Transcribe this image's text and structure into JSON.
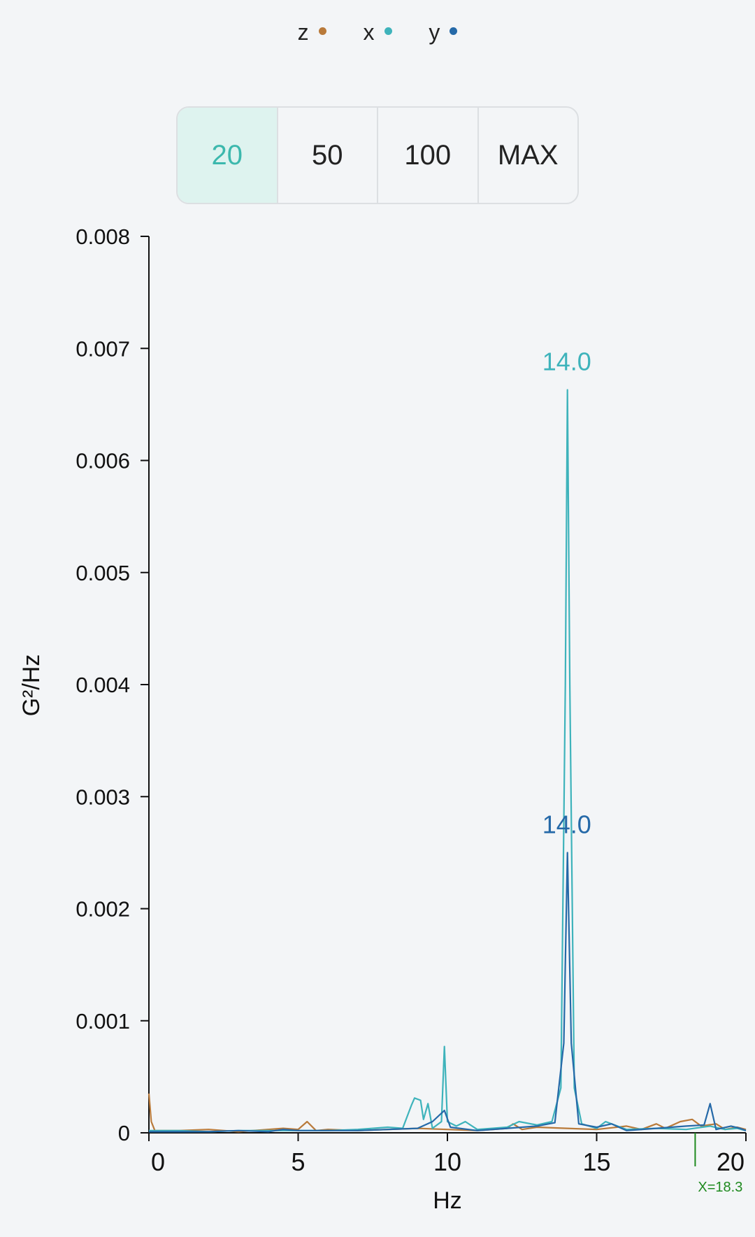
{
  "legend": [
    {
      "name": "z",
      "color": "#b97a3a"
    },
    {
      "name": "x",
      "color": "#3eb3bb"
    },
    {
      "name": "y",
      "color": "#2569a8"
    }
  ],
  "range_selector": {
    "options": [
      "20",
      "50",
      "100",
      "MAX"
    ],
    "active": "20"
  },
  "chart_data": {
    "type": "line",
    "xlabel": "Hz",
    "ylabel": "G²/Hz",
    "xlim": [
      0,
      20
    ],
    "ylim": [
      0,
      0.008
    ],
    "x_ticks": [
      "0",
      "5",
      "10",
      "15",
      "20"
    ],
    "y_ticks": [
      "0",
      "0.001",
      "0.002",
      "0.003",
      "0.004",
      "0.005",
      "0.006",
      "0.007",
      "0.008"
    ],
    "series": [
      {
        "name": "z",
        "color": "#b97a3a",
        "points": [
          [
            0,
            0.00035
          ],
          [
            0.08,
            0.0001
          ],
          [
            0.2,
            2e-05
          ],
          [
            1,
            2e-05
          ],
          [
            2,
            3e-05
          ],
          [
            3,
            1e-05
          ],
          [
            4,
            3e-05
          ],
          [
            4.5,
            4e-05
          ],
          [
            5,
            3e-05
          ],
          [
            5.3,
            0.0001
          ],
          [
            5.6,
            2e-05
          ],
          [
            6,
            3e-05
          ],
          [
            7,
            2e-05
          ],
          [
            8,
            3e-05
          ],
          [
            9,
            4e-05
          ],
          [
            10,
            3e-05
          ],
          [
            11,
            2e-05
          ],
          [
            12,
            4e-05
          ],
          [
            12.2,
            8e-05
          ],
          [
            12.5,
            3e-05
          ],
          [
            13,
            5e-05
          ],
          [
            14,
            4e-05
          ],
          [
            15,
            3e-05
          ],
          [
            16,
            6e-05
          ],
          [
            16.5,
            3e-05
          ],
          [
            17,
            8e-05
          ],
          [
            17.3,
            4e-05
          ],
          [
            17.8,
            0.0001
          ],
          [
            18.2,
            0.00012
          ],
          [
            18.5,
            6e-05
          ],
          [
            19,
            8e-05
          ],
          [
            19.3,
            3e-05
          ],
          [
            19.7,
            5e-05
          ],
          [
            20,
            3e-05
          ]
        ]
      },
      {
        "name": "x",
        "color": "#3eb3bb",
        "points": [
          [
            0,
            2e-05
          ],
          [
            1,
            2e-05
          ],
          [
            2,
            1e-05
          ],
          [
            3,
            2e-05
          ],
          [
            4,
            2e-05
          ],
          [
            5,
            2e-05
          ],
          [
            6,
            2e-05
          ],
          [
            7,
            3e-05
          ],
          [
            8,
            5e-05
          ],
          [
            8.5,
            4e-05
          ],
          [
            8.8,
            0.00025
          ],
          [
            8.9,
            0.00031
          ],
          [
            9.1,
            0.00029
          ],
          [
            9.2,
            0.00012
          ],
          [
            9.35,
            0.00026
          ],
          [
            9.5,
            4e-05
          ],
          [
            9.8,
            0.0001
          ],
          [
            9.9,
            0.00077
          ],
          [
            10,
            0.0001
          ],
          [
            10.3,
            6e-05
          ],
          [
            10.6,
            0.0001
          ],
          [
            11,
            3e-05
          ],
          [
            12,
            5e-05
          ],
          [
            12.4,
            0.0001
          ],
          [
            13,
            7e-05
          ],
          [
            13.5,
            0.0001
          ],
          [
            13.8,
            0.0004
          ],
          [
            13.95,
            0.004
          ],
          [
            14.02,
            0.00663
          ],
          [
            14.1,
            0.004
          ],
          [
            14.25,
            0.0004
          ],
          [
            14.5,
            8e-05
          ],
          [
            15,
            4e-05
          ],
          [
            15.3,
            0.0001
          ],
          [
            16,
            3e-05
          ],
          [
            17,
            4e-05
          ],
          [
            18,
            3e-05
          ],
          [
            18.8,
            6e-05
          ],
          [
            19.3,
            3e-05
          ],
          [
            19.7,
            4e-05
          ],
          [
            20,
            2e-05
          ]
        ]
      },
      {
        "name": "y",
        "color": "#2569a8",
        "points": [
          [
            0,
            1e-05
          ],
          [
            1,
            1e-05
          ],
          [
            2,
            1e-05
          ],
          [
            3,
            2e-05
          ],
          [
            4,
            1e-05
          ],
          [
            4.5,
            3e-05
          ],
          [
            5,
            2e-05
          ],
          [
            6,
            2e-05
          ],
          [
            7,
            2e-05
          ],
          [
            8,
            3e-05
          ],
          [
            9,
            4e-05
          ],
          [
            9.5,
            0.0001
          ],
          [
            9.9,
            0.0002
          ],
          [
            10.1,
            5e-05
          ],
          [
            11,
            2e-05
          ],
          [
            12,
            4e-05
          ],
          [
            13,
            6e-05
          ],
          [
            13.6,
            9e-05
          ],
          [
            13.9,
            0.0008
          ],
          [
            14.02,
            0.0025
          ],
          [
            14.15,
            0.0008
          ],
          [
            14.4,
            8e-05
          ],
          [
            15,
            5e-05
          ],
          [
            15.5,
            8e-05
          ],
          [
            16,
            2e-05
          ],
          [
            17,
            4e-05
          ],
          [
            18,
            6e-05
          ],
          [
            18.6,
            7e-05
          ],
          [
            18.8,
            0.00026
          ],
          [
            19,
            3e-05
          ],
          [
            19.5,
            6e-05
          ],
          [
            19.8,
            4e-05
          ],
          [
            20,
            2e-05
          ]
        ]
      }
    ],
    "peak_annotations": [
      {
        "series": "x",
        "x": 14.0,
        "y": 0.00663,
        "label": "14.0",
        "color": "#3eb3bb"
      },
      {
        "series": "y",
        "x": 14.0,
        "y": 0.0025,
        "label": "14.0",
        "color": "#2569a8"
      }
    ],
    "cursor": {
      "x": 18.3,
      "label": "X=18.3",
      "color": "#1f8a1f"
    }
  }
}
